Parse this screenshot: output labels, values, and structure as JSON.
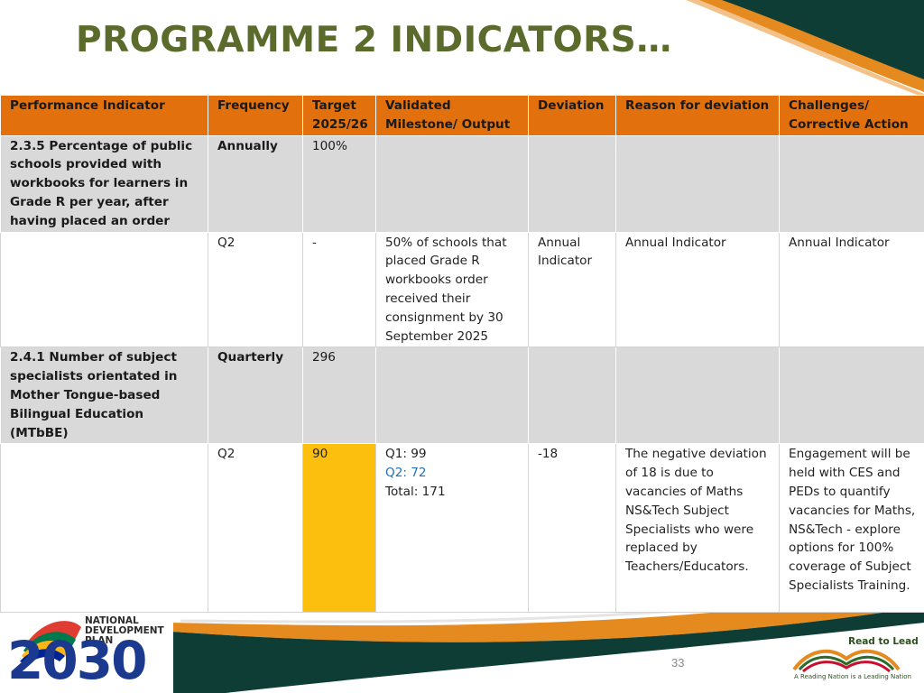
{
  "slide": {
    "title": "PROGRAMME 2 INDICATORS…",
    "page_number": "33"
  },
  "table": {
    "headers": [
      "Performance Indicator",
      "Frequency",
      "Target 2025/26",
      "Validated Milestone/ Output",
      "Deviation",
      "Reason for deviation",
      "Challenges/ Corrective Action"
    ],
    "rows": [
      {
        "indicator": "2.3.5 Percentage of public schools provided with workbooks for learners in Grade R per year, after having placed an order",
        "frequency": "Annually",
        "target": "100%"
      },
      {
        "frequency": "Q2",
        "target": "-",
        "milestone": "50% of schools that placed Grade R workbooks order received their consignment by 30 September 2025",
        "deviation": "Annual Indicator",
        "reason": "Annual Indicator",
        "challenges": "Annual Indicator"
      },
      {
        "indicator": "2.4.1 Number of subject specialists orientated in Mother Tongue-based Bilingual Education (MTbBE)",
        "frequency": "Quarterly",
        "target": "296"
      },
      {
        "frequency": "Q2",
        "target": "90",
        "milestone_q1": "Q1: 99",
        "milestone_q2": "Q2: 72",
        "milestone_total": "Total: 171",
        "deviation": "-18",
        "reason": "The negative deviation of 18 is due to vacancies of Maths NS&Tech Subject Specialists who were replaced by Teachers/Educators.",
        "challenges": "Engagement will be held with CES and PEDs to quantify vacancies for Maths, NS&Tech - explore options for 100% coverage of Subject Specialists Training."
      }
    ]
  },
  "logos": {
    "ndp_text": "NATIONAL DEVELOPMENT PLAN",
    "ndp_year": "2030",
    "rtl_title": "Read to Lead",
    "rtl_slogan": "A Reading Nation is a Leading Nation"
  },
  "colors": {
    "title": "#5a6b2b",
    "header_bg": "#e2700c",
    "indicator_row_bg": "#d9d9d9",
    "highlight": "#fcbf0d",
    "dark_green": "#0d3d35",
    "orange_swoosh": "#e58a1f"
  }
}
